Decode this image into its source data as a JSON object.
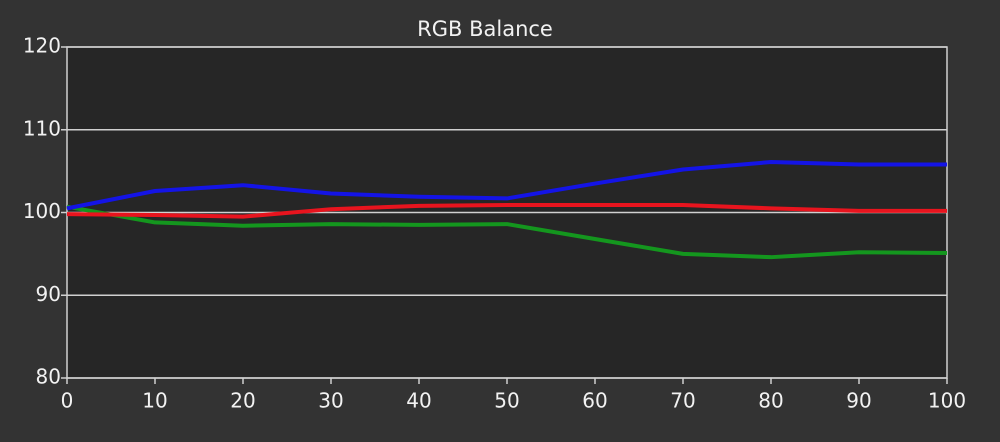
{
  "chart_data": {
    "type": "line",
    "title": "RGB Balance",
    "x": [
      0,
      10,
      20,
      30,
      40,
      50,
      60,
      70,
      80,
      90,
      100
    ],
    "series": [
      {
        "color": "#14961e",
        "values": [
          100.7,
          98.8,
          98.4,
          98.6,
          98.5,
          98.6,
          96.8,
          95.0,
          94.6,
          95.2,
          95.1
        ]
      },
      {
        "color": "#e8141e",
        "values": [
          99.8,
          99.7,
          99.5,
          100.4,
          100.8,
          100.9,
          100.9,
          100.9,
          100.5,
          100.2,
          100.2
        ]
      },
      {
        "color": "#1414e6",
        "values": [
          100.5,
          102.6,
          103.3,
          102.3,
          101.9,
          101.7,
          103.5,
          105.2,
          106.1,
          105.8,
          105.8
        ]
      }
    ],
    "xlim": [
      0,
      100
    ],
    "xticks": [
      0,
      10,
      20,
      30,
      40,
      50,
      60,
      70,
      80,
      90,
      100
    ],
    "ylim": [
      80,
      120
    ],
    "yticks": [
      80,
      90,
      100,
      110,
      120
    ],
    "grid": true
  }
}
